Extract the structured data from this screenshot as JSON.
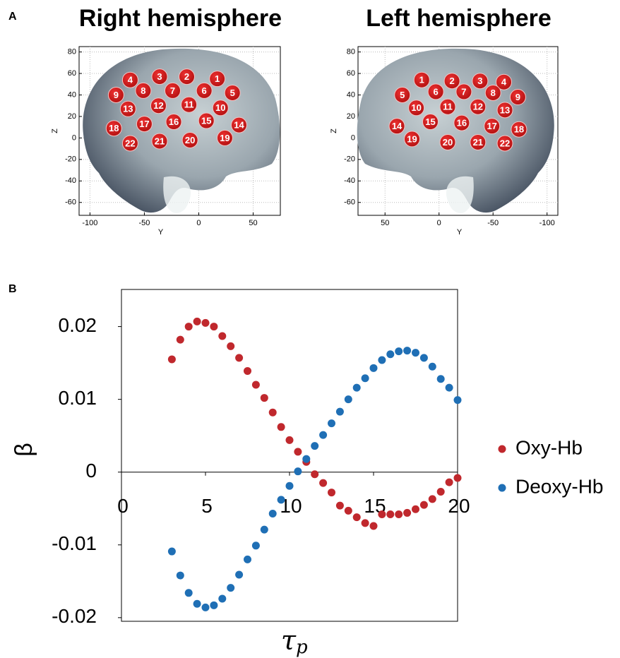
{
  "chart_data": [
    {
      "type": "scatter",
      "panel_label": "A",
      "title": "Right hemisphere",
      "xlabel": "Y",
      "ylabel": "Z",
      "xlim": [
        -110,
        75
      ],
      "ylim": [
        -72,
        85
      ],
      "xticks": [
        -100,
        -50,
        0,
        50
      ],
      "yticks": [
        -60,
        -40,
        -20,
        0,
        20,
        40,
        60,
        80
      ],
      "grid": true,
      "color": "#d01c1c",
      "point_labels": [
        1,
        2,
        3,
        4,
        5,
        6,
        7,
        8,
        9,
        10,
        11,
        12,
        13,
        14,
        15,
        16,
        17,
        18,
        19,
        20,
        21,
        22
      ],
      "x": [
        17,
        -11,
        -36,
        -63,
        31,
        5,
        -24,
        -51,
        -76,
        20,
        -9,
        -37,
        -65,
        37,
        7,
        -23,
        -50,
        -78,
        24,
        -8,
        -36,
        -63
      ],
      "values": [
        55,
        57,
        57,
        54,
        42,
        44,
        44,
        44,
        40,
        28,
        31,
        30,
        27,
        12,
        16,
        15,
        13,
        9,
        0,
        -2,
        -3,
        -5
      ]
    },
    {
      "type": "scatter",
      "title": "Left hemisphere",
      "xlabel": "Y",
      "ylabel": "Z",
      "xlim": [
        75,
        -110
      ],
      "ylim": [
        -72,
        85
      ],
      "xticks": [
        50,
        0,
        -50,
        -100
      ],
      "yticks": [
        -60,
        -40,
        -20,
        0,
        20,
        40,
        60,
        80
      ],
      "grid": true,
      "color": "#d01c1c",
      "point_labels": [
        1,
        2,
        3,
        4,
        5,
        6,
        7,
        8,
        9,
        10,
        11,
        12,
        13,
        14,
        15,
        16,
        17,
        18,
        19,
        20,
        21,
        22
      ],
      "x": [
        16,
        -12,
        -38,
        -60,
        34,
        3,
        -23,
        -50,
        -73,
        21,
        -8,
        -36,
        -61,
        39,
        8,
        -21,
        -49,
        -74,
        25,
        -8,
        -36,
        -61
      ],
      "values": [
        54,
        53,
        53,
        52,
        40,
        43,
        43,
        42,
        38,
        28,
        29,
        29,
        26,
        11,
        15,
        14,
        11,
        8,
        -1,
        -4,
        -4,
        -5
      ]
    },
    {
      "type": "scatter",
      "panel_label": "B",
      "ylabel": "β",
      "xlabel": "τ",
      "xlabel_subscript": "p",
      "xlim": [
        0,
        20
      ],
      "ylim": [
        -0.0205,
        0.0251
      ],
      "xticks": [
        0,
        5,
        10,
        15,
        20
      ],
      "yticks": [
        -0.02,
        -0.01,
        0,
        0.01,
        0.02
      ],
      "grid": false,
      "legend": "right",
      "x": [
        3,
        3.5,
        4,
        4.5,
        5,
        5.5,
        6,
        6.5,
        7,
        7.5,
        8,
        8.5,
        9,
        9.5,
        10,
        10.5,
        11,
        11.5,
        12,
        12.5,
        13,
        13.5,
        14,
        14.5,
        15,
        15.5,
        16,
        16.5,
        17,
        17.5,
        18,
        18.5,
        19,
        19.5,
        20
      ],
      "series": [
        {
          "name": "Oxy-Hb",
          "color": "#c0282d",
          "values": [
            0.0155,
            0.0182,
            0.02,
            0.0207,
            0.0205,
            0.02,
            0.0187,
            0.0173,
            0.0157,
            0.0139,
            0.012,
            0.0102,
            0.0082,
            0.0062,
            0.0044,
            0.0028,
            0.0014,
            -0.0003,
            -0.0015,
            -0.0028,
            -0.0046,
            -0.0053,
            -0.0062,
            -0.007,
            -0.0074,
            -0.0058,
            -0.0058,
            -0.0058,
            -0.0056,
            -0.0051,
            -0.0045,
            -0.0037,
            -0.0027,
            -0.0014,
            -0.0008
          ]
        },
        {
          "name": "Deoxy-Hb",
          "color": "#1f6fb5",
          "values": [
            -0.0109,
            -0.0142,
            -0.0166,
            -0.0181,
            -0.0186,
            -0.0183,
            -0.0174,
            -0.0159,
            -0.0141,
            -0.012,
            -0.0101,
            -0.0079,
            -0.0057,
            -0.0038,
            -0.0019,
            0.0001,
            0.0018,
            0.0036,
            0.0051,
            0.0067,
            0.0083,
            0.01,
            0.0116,
            0.0129,
            0.0143,
            0.0154,
            0.0162,
            0.0166,
            0.0167,
            0.0164,
            0.0157,
            0.0145,
            0.0128,
            0.0116,
            0.0099
          ]
        }
      ]
    }
  ]
}
